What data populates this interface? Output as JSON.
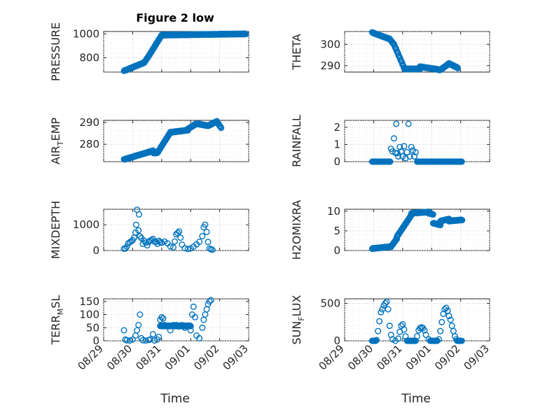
{
  "figure": {
    "title": "Figure 2 low",
    "xlabel": "Time"
  },
  "chart_data": [
    {
      "type": "scatter",
      "ylabel": "PRESSURE",
      "title": "Figure 2 low",
      "xlim": [
        0,
        5
      ],
      "ylim": [
        680,
        1020
      ],
      "yticks": [
        800,
        1000
      ],
      "xticklabels": false,
      "segments": [
        [
          0.7,
          1.4,
          690,
          760
        ],
        [
          1.4,
          1.62,
          760,
          840
        ],
        [
          1.62,
          2.0,
          840,
          990
        ],
        [
          2.0,
          4.9,
          990,
          1000
        ]
      ]
    },
    {
      "type": "scatter",
      "ylabel": "THETA",
      "xlim": [
        0,
        5
      ],
      "ylim": [
        287,
        306
      ],
      "yticks": [
        290,
        300
      ],
      "xticklabels": false,
      "segments": [
        [
          0.95,
          1.55,
          305.5,
          302.5
        ],
        [
          1.55,
          1.7,
          302.5,
          300
        ],
        [
          1.7,
          2.05,
          300,
          289
        ],
        [
          2.05,
          2.6,
          288.5,
          288.5
        ],
        [
          2.6,
          3.1,
          289.5,
          288.5
        ],
        [
          3.1,
          3.3,
          288.5,
          288
        ],
        [
          3.3,
          3.6,
          288,
          291
        ],
        [
          3.6,
          3.9,
          291,
          289
        ]
      ]
    },
    {
      "type": "scatter",
      "ylabel": "AIR_TEMP",
      "xlim": [
        0,
        5
      ],
      "ylim": [
        272,
        291
      ],
      "yticks": [
        280,
        290
      ],
      "xticklabels": false,
      "segments": [
        [
          0.7,
          1.7,
          273,
          277
        ],
        [
          1.7,
          1.85,
          276,
          276
        ],
        [
          1.85,
          2.3,
          276,
          285.5
        ],
        [
          2.3,
          2.9,
          285.5,
          286.5
        ],
        [
          2.9,
          3.2,
          287,
          289.5
        ],
        [
          3.2,
          3.6,
          289.5,
          288.5
        ],
        [
          3.6,
          3.9,
          288.5,
          290.5
        ],
        [
          3.9,
          4.05,
          290.5,
          287.5
        ]
      ]
    },
    {
      "type": "scatter",
      "ylabel": "RAINFALL",
      "xlim": [
        0,
        5
      ],
      "ylim": [
        0,
        2.4
      ],
      "yticks": [
        0,
        1,
        2
      ],
      "xticklabels": false,
      "points": [
        [
          1.6,
          0.75
        ],
        [
          1.65,
          0.6
        ],
        [
          1.7,
          1.35
        ],
        [
          1.75,
          0.5
        ],
        [
          1.78,
          2.2
        ],
        [
          1.82,
          0.5
        ],
        [
          1.85,
          0.3
        ],
        [
          1.9,
          0.85
        ],
        [
          1.95,
          0.6
        ],
        [
          2.0,
          0.3
        ],
        [
          2.05,
          0.9
        ],
        [
          2.1,
          0.2
        ],
        [
          2.15,
          0.55
        ],
        [
          2.2,
          2.2
        ],
        [
          2.25,
          0.3
        ],
        [
          2.3,
          0.85
        ],
        [
          2.35,
          0.65
        ],
        [
          2.4,
          0.3
        ],
        [
          2.45,
          0.55
        ]
      ],
      "baseline": [
        [
          0.95,
          1.58
        ],
        [
          2.5,
          4.05
        ]
      ]
    },
    {
      "type": "scatter",
      "ylabel": "MIXDEPTH",
      "xlim": [
        0,
        5
      ],
      "ylim": [
        0,
        1600
      ],
      "yticks": [
        0,
        1000
      ],
      "xticklabels": false,
      "points": [
        [
          0.7,
          70
        ],
        [
          0.75,
          80
        ],
        [
          0.8,
          150
        ],
        [
          0.85,
          280
        ],
        [
          0.9,
          320
        ],
        [
          0.95,
          360
        ],
        [
          1.0,
          400
        ],
        [
          1.05,
          500
        ],
        [
          1.1,
          700
        ],
        [
          1.12,
          1000
        ],
        [
          1.15,
          1580
        ],
        [
          1.2,
          780
        ],
        [
          1.22,
          1400
        ],
        [
          1.25,
          550
        ],
        [
          1.3,
          480
        ],
        [
          1.35,
          260
        ],
        [
          1.4,
          380
        ],
        [
          1.45,
          300
        ],
        [
          1.5,
          200
        ],
        [
          1.55,
          330
        ],
        [
          1.6,
          380
        ],
        [
          1.65,
          410
        ],
        [
          1.7,
          450
        ],
        [
          1.75,
          350
        ],
        [
          1.8,
          330
        ],
        [
          1.85,
          260
        ],
        [
          1.9,
          380
        ],
        [
          1.95,
          330
        ],
        [
          2.0,
          300
        ],
        [
          2.1,
          350
        ],
        [
          2.2,
          280
        ],
        [
          2.3,
          160
        ],
        [
          2.4,
          120
        ],
        [
          2.45,
          350
        ],
        [
          2.5,
          630
        ],
        [
          2.55,
          680
        ],
        [
          2.6,
          740
        ],
        [
          2.65,
          500
        ],
        [
          2.7,
          230
        ],
        [
          2.8,
          90
        ],
        [
          2.9,
          60
        ],
        [
          3.0,
          80
        ],
        [
          3.1,
          150
        ],
        [
          3.2,
          240
        ],
        [
          3.3,
          340
        ],
        [
          3.4,
          560
        ],
        [
          3.45,
          900
        ],
        [
          3.5,
          1000
        ],
        [
          3.55,
          720
        ],
        [
          3.6,
          330
        ],
        [
          3.65,
          80
        ],
        [
          3.7,
          50
        ],
        [
          3.75,
          30
        ]
      ]
    },
    {
      "type": "scatter",
      "ylabel": "H2OMIXRA",
      "xlim": [
        0,
        5
      ],
      "ylim": [
        0,
        10.5
      ],
      "yticks": [
        0,
        5,
        10
      ],
      "xticklabels": false,
      "segments": [
        [
          0.95,
          1.6,
          0.5,
          1.0
        ],
        [
          1.6,
          1.8,
          1.0,
          3.0
        ],
        [
          1.8,
          2.3,
          3.5,
          9.0
        ],
        [
          2.3,
          2.9,
          9.5,
          9.8
        ],
        [
          2.9,
          3.05,
          9.5,
          9.2
        ],
        [
          3.05,
          3.3,
          7.0,
          6.5
        ],
        [
          3.3,
          3.6,
          7.5,
          8.0
        ],
        [
          3.6,
          4.05,
          7.5,
          7.8
        ]
      ]
    },
    {
      "type": "scatter",
      "ylabel": "TERR_MSL",
      "xlim": [
        0,
        5
      ],
      "ylim": [
        0,
        160
      ],
      "yticks": [
        0,
        50,
        100,
        150
      ],
      "xticklabels": true,
      "points": [
        [
          0.7,
          40
        ],
        [
          0.75,
          5
        ],
        [
          0.8,
          2
        ],
        [
          0.9,
          1
        ],
        [
          1.0,
          5
        ],
        [
          1.1,
          20
        ],
        [
          1.15,
          40
        ],
        [
          1.2,
          60
        ],
        [
          1.25,
          100
        ],
        [
          1.3,
          10
        ],
        [
          1.35,
          2
        ],
        [
          1.45,
          1
        ],
        [
          1.55,
          3
        ],
        [
          1.6,
          5
        ],
        [
          1.7,
          25
        ],
        [
          1.75,
          1
        ],
        [
          1.85,
          5
        ],
        [
          1.9,
          15
        ],
        [
          1.95,
          80
        ],
        [
          2.0,
          90
        ],
        [
          2.05,
          85
        ],
        [
          2.1,
          60
        ],
        [
          2.2,
          55
        ],
        [
          2.3,
          40
        ],
        [
          2.4,
          60
        ],
        [
          2.5,
          60
        ],
        [
          2.6,
          55
        ],
        [
          2.7,
          60
        ],
        [
          2.8,
          50
        ],
        [
          2.9,
          55
        ],
        [
          3.0,
          40
        ],
        [
          3.05,
          100
        ],
        [
          3.1,
          130
        ],
        [
          3.15,
          90
        ],
        [
          3.2,
          20
        ],
        [
          3.3,
          10
        ],
        [
          3.4,
          50
        ],
        [
          3.45,
          80
        ],
        [
          3.5,
          100
        ],
        [
          3.55,
          120
        ],
        [
          3.6,
          140
        ],
        [
          3.65,
          150
        ],
        [
          3.7,
          155
        ]
      ],
      "segments": [
        [
          1.95,
          3.0,
          57,
          57
        ]
      ]
    },
    {
      "type": "scatter",
      "ylabel": "SUN_FLUX",
      "xlim": [
        0,
        5
      ],
      "ylim": [
        0,
        560
      ],
      "yticks": [
        0,
        500
      ],
      "xticklabels": true,
      "points": [
        [
          1.0,
          0
        ],
        [
          1.05,
          0
        ],
        [
          1.1,
          10
        ],
        [
          1.15,
          130
        ],
        [
          1.2,
          260
        ],
        [
          1.25,
          380
        ],
        [
          1.3,
          420
        ],
        [
          1.35,
          470
        ],
        [
          1.4,
          500
        ],
        [
          1.45,
          520
        ],
        [
          1.5,
          420
        ],
        [
          1.55,
          200
        ],
        [
          1.6,
          80
        ],
        [
          1.65,
          20
        ],
        [
          1.75,
          0
        ],
        [
          1.85,
          30
        ],
        [
          1.9,
          120
        ],
        [
          1.95,
          200
        ],
        [
          2.0,
          220
        ],
        [
          2.05,
          150
        ],
        [
          2.1,
          60
        ],
        [
          2.2,
          0
        ],
        [
          2.4,
          0
        ],
        [
          2.5,
          60
        ],
        [
          2.55,
          140
        ],
        [
          2.6,
          170
        ],
        [
          2.65,
          180
        ],
        [
          2.7,
          170
        ],
        [
          2.75,
          140
        ],
        [
          2.8,
          80
        ],
        [
          2.9,
          20
        ],
        [
          3.0,
          0
        ],
        [
          3.15,
          0
        ],
        [
          3.25,
          20
        ],
        [
          3.3,
          130
        ],
        [
          3.35,
          250
        ],
        [
          3.4,
          360
        ],
        [
          3.45,
          420
        ],
        [
          3.5,
          440
        ],
        [
          3.55,
          400
        ],
        [
          3.6,
          330
        ],
        [
          3.65,
          280
        ],
        [
          3.7,
          200
        ],
        [
          3.75,
          130
        ],
        [
          3.8,
          60
        ],
        [
          3.85,
          20
        ],
        [
          3.9,
          0
        ]
      ],
      "baseline": [
        [
          0.95,
          1.08
        ],
        [
          2.15,
          2.45
        ],
        [
          2.95,
          3.2
        ],
        [
          3.88,
          4.05
        ]
      ]
    }
  ],
  "xticklabels": [
    "08/29",
    "08/30",
    "08/31",
    "09/01",
    "09/02",
    "09/03"
  ],
  "ylabel_parts": {
    "AIR_TEMP": [
      "AIR",
      "T",
      "EMP"
    ],
    "TERR_MSL": [
      "TERR",
      "M",
      "SL"
    ],
    "SUN_FLUX": [
      "SUN",
      "F",
      "LUX"
    ]
  }
}
